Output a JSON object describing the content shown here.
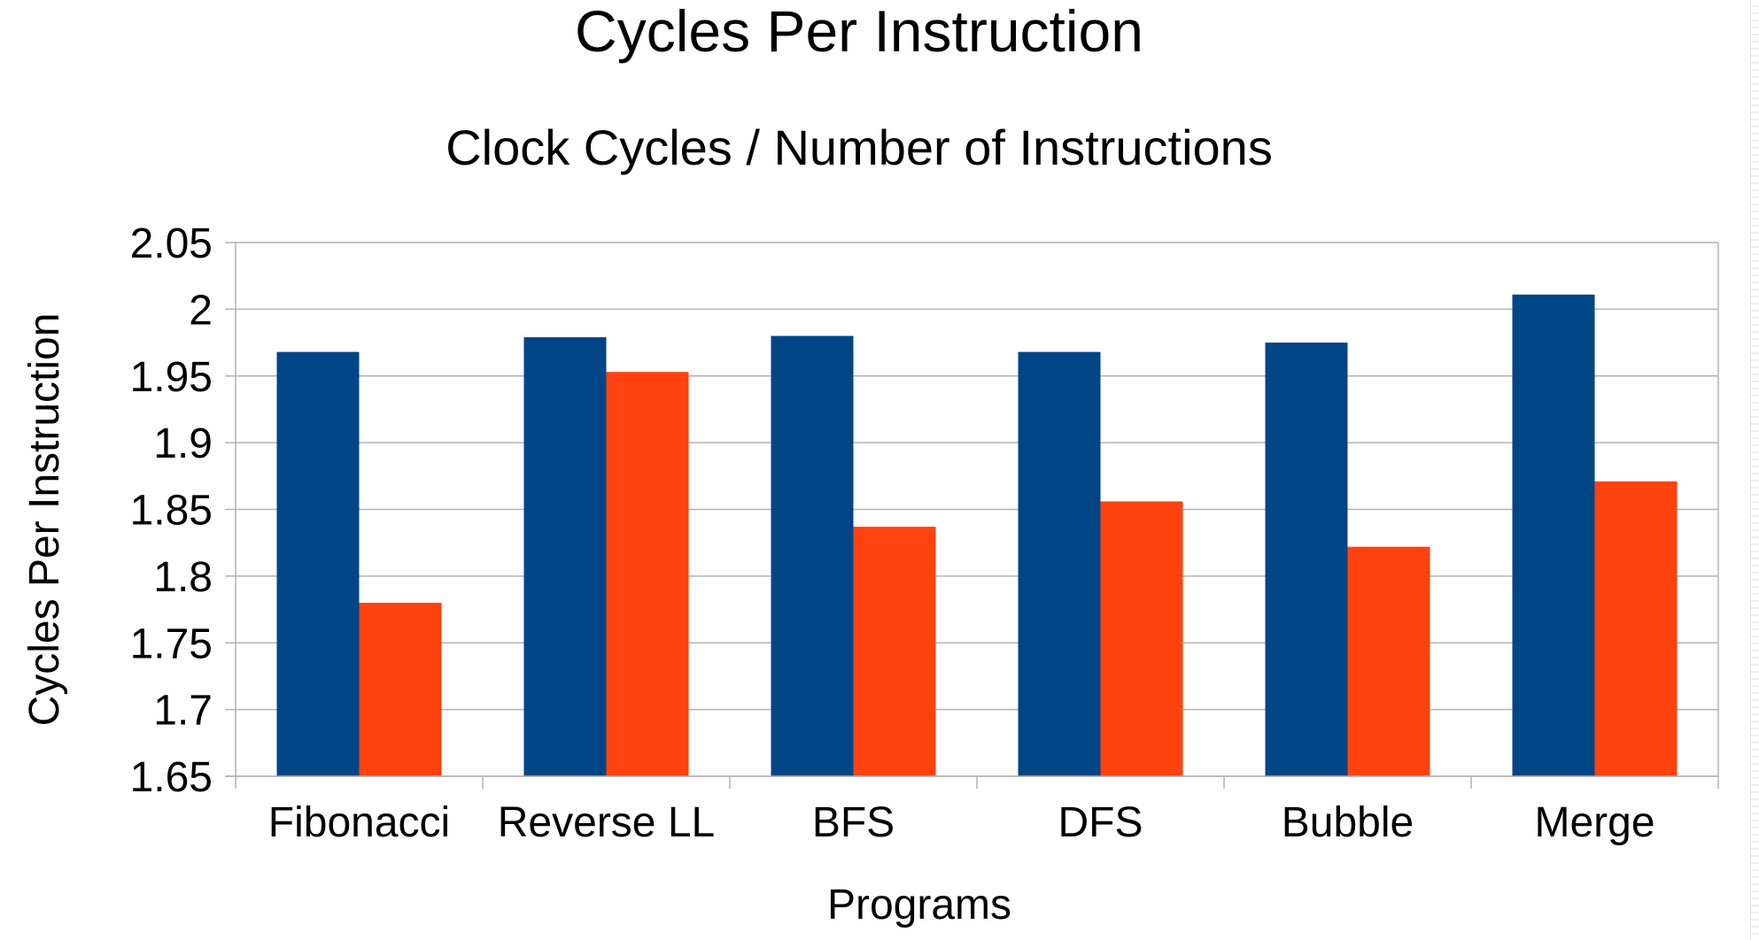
{
  "chart_data": {
    "type": "bar",
    "title": "Cycles Per Instruction",
    "subtitle": "Clock Cycles / Number of Instructions",
    "xlabel": "Programs",
    "ylabel": "Cycles Per Instruction",
    "categories": [
      "Fibonacci",
      "Reverse LL",
      "BFS",
      "DFS",
      "Bubble",
      "Merge"
    ],
    "series": [
      {
        "values": [
          1.968,
          1.979,
          1.98,
          1.968,
          1.975,
          2.011
        ],
        "color": "#004586"
      },
      {
        "values": [
          1.78,
          1.953,
          1.837,
          1.856,
          1.822,
          1.871
        ],
        "color": "#ff420e"
      }
    ],
    "ylim": [
      1.65,
      2.05
    ],
    "yticks": [
      "1.65",
      "1.7",
      "1.75",
      "1.8",
      "1.85",
      "1.9",
      "1.95",
      "2",
      "2.05"
    ],
    "grid": true,
    "legend": "none"
  }
}
